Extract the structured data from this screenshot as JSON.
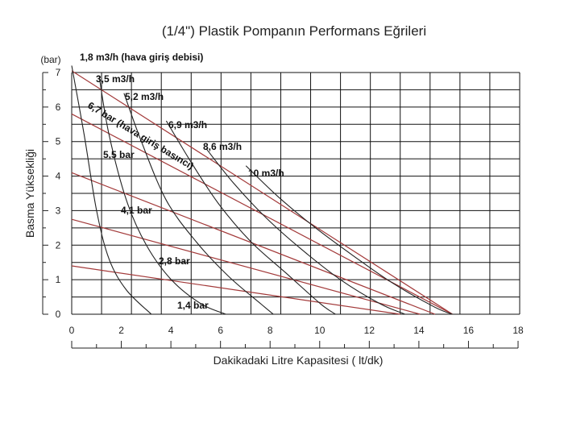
{
  "chart_data": {
    "type": "line",
    "title": "(1/4\") Plastik Pompanın Performans Eğrileri",
    "xlabel": "Dakikadaki Litre Kapasitesi ( lt/dk)",
    "ylabel": "Basma Yüksekliği",
    "yunit": "(bar)",
    "xlim": [
      0,
      18
    ],
    "ylim": [
      0,
      7
    ],
    "x_ticks": [
      "0",
      "2",
      "4",
      "6",
      "8",
      "10",
      "12",
      "14",
      "16",
      "18"
    ],
    "y_ticks": [
      "0",
      "1",
      "2",
      "3",
      "4",
      "5",
      "6",
      "7"
    ],
    "grid": true,
    "colors": {
      "flow_curve": "#222222",
      "pressure_line": "#a33a3a",
      "grid": "#111111"
    },
    "flow_curves": [
      {
        "label": "1,8 m3/h (hava giriş debisi)",
        "points": [
          [
            0,
            7.2
          ],
          [
            0.5,
            5.2
          ],
          [
            1.0,
            3.0
          ],
          [
            1.5,
            1.6
          ],
          [
            2.2,
            0.7
          ],
          [
            3.2,
            0.0
          ]
        ]
      },
      {
        "label": "3,5 m3/h",
        "points": [
          [
            1.1,
            6.9
          ],
          [
            1.5,
            5.2
          ],
          [
            2.2,
            3.3
          ],
          [
            3.0,
            2.0
          ],
          [
            4.0,
            1.0
          ],
          [
            5.2,
            0.3
          ],
          [
            6.2,
            0.0
          ]
        ]
      },
      {
        "label": "5,2 m3/h",
        "points": [
          [
            2.1,
            6.4
          ],
          [
            2.8,
            5.0
          ],
          [
            3.8,
            3.3
          ],
          [
            5.0,
            2.1
          ],
          [
            6.3,
            1.1
          ],
          [
            7.6,
            0.3
          ],
          [
            8.1,
            0.0
          ]
        ]
      },
      {
        "label": "6,9 m3/h",
        "points": [
          [
            3.8,
            5.6
          ],
          [
            4.8,
            4.4
          ],
          [
            5.9,
            3.2
          ],
          [
            7.2,
            2.1
          ],
          [
            8.6,
            1.2
          ],
          [
            10.0,
            0.3
          ],
          [
            10.6,
            0.0
          ]
        ]
      },
      {
        "label": "8,6 m3/h",
        "points": [
          [
            5.4,
            4.8
          ],
          [
            6.5,
            3.8
          ],
          [
            7.8,
            2.8
          ],
          [
            9.2,
            1.9
          ],
          [
            10.8,
            1.0
          ],
          [
            12.4,
            0.3
          ],
          [
            13.4,
            0.0
          ]
        ]
      },
      {
        "label": "10 m3/h",
        "points": [
          [
            7.0,
            4.3
          ],
          [
            8.3,
            3.4
          ],
          [
            9.8,
            2.5
          ],
          [
            11.3,
            1.7
          ],
          [
            12.9,
            0.9
          ],
          [
            14.6,
            0.2
          ],
          [
            15.3,
            0.0
          ]
        ]
      }
    ],
    "pressure_lines": [
      {
        "label": "6,7 bar (hava giriş basıncı)",
        "points": [
          [
            0,
            7.05
          ],
          [
            15.3,
            0.0
          ]
        ]
      },
      {
        "label": "5,5 bar",
        "points": [
          [
            0,
            5.8
          ],
          [
            15.3,
            0.0
          ]
        ]
      },
      {
        "label": "4,1 bar",
        "points": [
          [
            0,
            4.1
          ],
          [
            14.6,
            0.0
          ]
        ]
      },
      {
        "label": "2,8 bar",
        "points": [
          [
            0,
            2.75
          ],
          [
            14.0,
            0.0
          ]
        ]
      },
      {
        "label": "1,4 bar",
        "points": [
          [
            0,
            1.4
          ],
          [
            13.2,
            0.0
          ]
        ]
      }
    ]
  }
}
